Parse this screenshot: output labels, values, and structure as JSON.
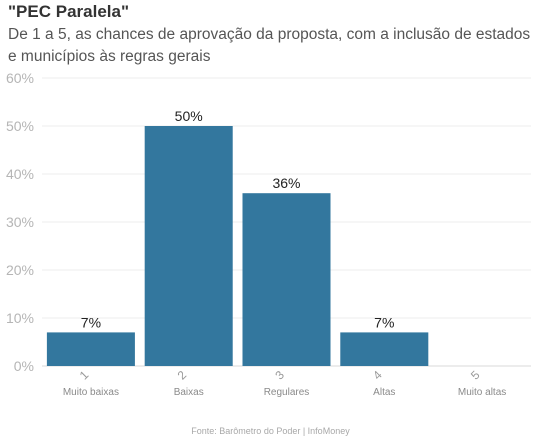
{
  "chart_data": {
    "type": "bar",
    "title": "\"PEC Paralela\"",
    "subtitle": "De 1 a 5, as chances de aprovação da proposta, com a inclusão de estados e municípios às regras gerais",
    "categories": [
      "1",
      "2",
      "3",
      "4",
      "5"
    ],
    "category_labels": [
      "Muito baixas",
      "Baixas",
      "Regulares",
      "Altas",
      "Muito altas"
    ],
    "values": [
      7,
      50,
      36,
      7,
      0
    ],
    "data_labels": [
      "7%",
      "50%",
      "36%",
      "7%",
      ""
    ],
    "ylim": [
      0,
      60
    ],
    "yticks": [
      "0%",
      "10%",
      "20%",
      "30%",
      "40%",
      "50%",
      "60%"
    ],
    "bar_color": "#33779e",
    "grid": true,
    "source": "Fonte: Barômetro do Poder | InfoMoney"
  }
}
